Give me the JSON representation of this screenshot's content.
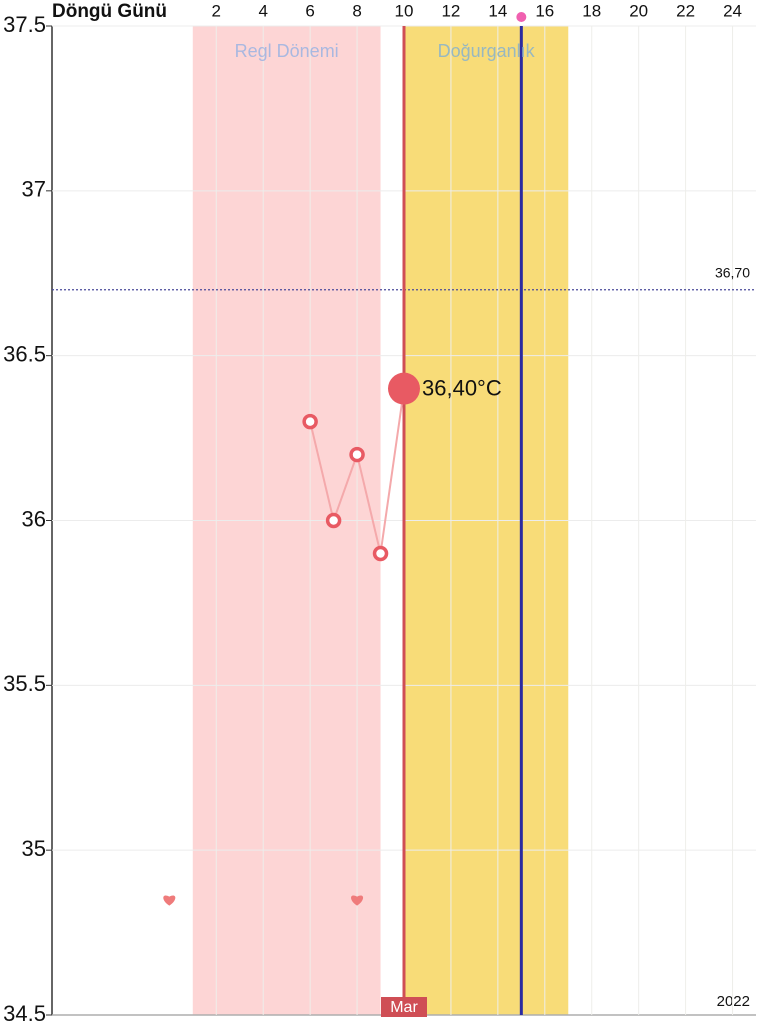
{
  "chart_data": {
    "type": "line",
    "title": "Döngü Günü",
    "xlim": [
      -5,
      25
    ],
    "xticks": [
      2,
      4,
      6,
      8,
      10,
      12,
      14,
      16,
      18,
      20,
      22,
      24
    ],
    "ylim": [
      34.5,
      37.5
    ],
    "yticks": [
      34.5,
      35,
      35.5,
      36,
      36.5,
      37,
      37.5
    ],
    "grid": true,
    "bands": [
      {
        "label": "Regl Dönemi",
        "start": 1,
        "end": 9,
        "color": "#fdd5d5",
        "label_color": "#a9b8e0"
      },
      {
        "label": "Doğurganlık",
        "start": 10,
        "end": 17,
        "color": "#f8dc78",
        "label_color": "#98b8c0"
      }
    ],
    "vlines": [
      {
        "x": 10,
        "color": "#cf4e55",
        "label": "Mar"
      },
      {
        "x": 15,
        "color": "#2b2ba0"
      }
    ],
    "reference_line": {
      "value": 36.7,
      "label": "36,70",
      "color": "#4a4a9a"
    },
    "series": [
      {
        "color": "#e85a63",
        "x": [
          6,
          7,
          8,
          9,
          10
        ],
        "values": [
          36.3,
          36.0,
          36.2,
          35.9,
          36.4
        ],
        "value_labels": [
          null,
          null,
          null,
          null,
          "36,40°C"
        ]
      }
    ],
    "markers": {
      "color": "#ef7b7b",
      "x": [
        0,
        8
      ],
      "values": [
        34.85,
        34.85
      ]
    },
    "year_label": "2022"
  }
}
